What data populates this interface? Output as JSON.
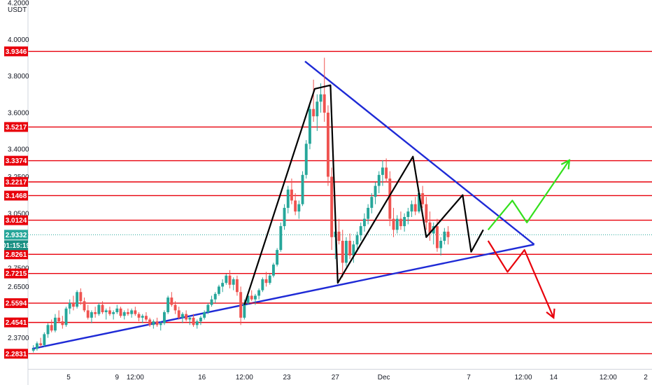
{
  "currency": "USDT",
  "colors": {
    "level": "#e8000b",
    "level_label_bg": "#e8000b",
    "triangle": "#1e2ad6",
    "bull": "#26a69a",
    "bear": "#ef5350",
    "pattern": "#000000",
    "bull_arrow": "#33e01c",
    "bear_arrow": "#e8000b",
    "current_bg": "#26a69a",
    "timer_bg": "#178f82"
  },
  "chart_data": {
    "type": "candlestick",
    "ylim": [
      2.25,
      4.2
    ],
    "y_ticks": [
      "4.2000",
      "4.0000",
      "3.8000",
      "3.6000",
      "3.4000",
      "3.2500",
      "3.0500",
      "2.7500",
      "2.6500",
      "2.3700"
    ],
    "y_tick_values": [
      4.2,
      4.0,
      3.8,
      3.6,
      3.4,
      3.25,
      3.05,
      2.75,
      2.65,
      2.37
    ],
    "x_ticks": [
      "5",
      "9",
      "12:00",
      "16",
      "12:00",
      "23",
      "27",
      "Dec",
      "7",
      "12:00",
      "14",
      "12:00",
      "2"
    ],
    "x_tick_days": [
      5,
      9,
      10.5,
      16,
      19.5,
      23,
      27,
      31,
      38,
      42.5,
      45,
      49.5,
      52.6
    ],
    "xlim": [
      2.0,
      53.0
    ],
    "levels": [
      "3.9346",
      "3.5217",
      "3.3374",
      "3.2217",
      "3.1468",
      "3.0124",
      "2.8261",
      "2.7215",
      "2.5594",
      "2.4541",
      "2.2831"
    ],
    "level_values": [
      3.9346,
      3.5217,
      3.3374,
      3.2217,
      3.1468,
      3.0124,
      2.8261,
      2.7215,
      2.5594,
      2.4541,
      2.2831
    ],
    "current_price": "2.9332",
    "current_value": 2.9332,
    "countdown": "01:15:19",
    "trendlines": [
      {
        "kind": "triangle-lower",
        "points": [
          [
            2.0,
            2.31
          ],
          [
            43.4,
            2.88
          ]
        ]
      },
      {
        "kind": "triangle-upper",
        "points": [
          [
            24.5,
            3.88
          ],
          [
            43.4,
            2.88
          ]
        ]
      },
      {
        "kind": "support",
        "points": [
          [
            19.7,
            2.56
          ],
          [
            53.0,
            2.56
          ]
        ]
      }
    ],
    "pattern_path": [
      [
        19.5,
        2.55
      ],
      [
        25.3,
        3.73
      ],
      [
        26.6,
        3.75
      ],
      [
        27.2,
        2.67
      ],
      [
        33.4,
        3.36
      ],
      [
        34.5,
        2.92
      ],
      [
        37.5,
        3.15
      ],
      [
        38.2,
        2.84
      ],
      [
        39.2,
        2.96
      ]
    ],
    "bull_scenario": [
      [
        39.6,
        2.96
      ],
      [
        41.6,
        3.12
      ],
      [
        42.8,
        3.0
      ],
      [
        46.3,
        3.34
      ]
    ],
    "bear_scenario": [
      [
        39.6,
        2.9
      ],
      [
        41.2,
        2.73
      ],
      [
        42.6,
        2.85
      ],
      [
        45.0,
        2.48
      ]
    ],
    "candles": [
      [
        2.1,
        2.3,
        2.33,
        2.29,
        2.31
      ],
      [
        2.4,
        2.31,
        2.35,
        2.3,
        2.34
      ],
      [
        2.7,
        2.34,
        2.37,
        2.32,
        2.33
      ],
      [
        3.0,
        2.33,
        2.4,
        2.32,
        2.39
      ],
      [
        3.3,
        2.39,
        2.45,
        2.37,
        2.44
      ],
      [
        3.6,
        2.44,
        2.47,
        2.4,
        2.41
      ],
      [
        3.9,
        2.41,
        2.5,
        2.4,
        2.48
      ],
      [
        4.2,
        2.48,
        2.52,
        2.45,
        2.46
      ],
      [
        4.5,
        2.46,
        2.49,
        2.42,
        2.44
      ],
      [
        4.8,
        2.44,
        2.54,
        2.43,
        2.53
      ],
      [
        5.1,
        2.53,
        2.58,
        2.5,
        2.56
      ],
      [
        5.4,
        2.56,
        2.6,
        2.52,
        2.54
      ],
      [
        5.7,
        2.54,
        2.63,
        2.53,
        2.62
      ],
      [
        6.0,
        2.62,
        2.64,
        2.55,
        2.57
      ],
      [
        6.3,
        2.57,
        2.59,
        2.51,
        2.52
      ],
      [
        6.6,
        2.52,
        2.55,
        2.47,
        2.48
      ],
      [
        6.9,
        2.48,
        2.52,
        2.45,
        2.51
      ],
      [
        7.2,
        2.51,
        2.54,
        2.48,
        2.5
      ],
      [
        7.5,
        2.5,
        2.56,
        2.49,
        2.55
      ],
      [
        7.8,
        2.55,
        2.57,
        2.5,
        2.51
      ],
      [
        8.1,
        2.51,
        2.53,
        2.47,
        2.52
      ],
      [
        8.4,
        2.52,
        2.54,
        2.49,
        2.5
      ],
      [
        8.7,
        2.5,
        2.52,
        2.47,
        2.51
      ],
      [
        9.0,
        2.51,
        2.55,
        2.5,
        2.53
      ],
      [
        9.3,
        2.53,
        2.54,
        2.48,
        2.49
      ],
      [
        9.6,
        2.49,
        2.52,
        2.47,
        2.51
      ],
      [
        9.9,
        2.51,
        2.53,
        2.49,
        2.5
      ],
      [
        10.2,
        2.5,
        2.53,
        2.48,
        2.52
      ],
      [
        10.5,
        2.52,
        2.54,
        2.49,
        2.5
      ],
      [
        10.8,
        2.5,
        2.51,
        2.46,
        2.48
      ],
      [
        11.1,
        2.48,
        2.5,
        2.45,
        2.49
      ],
      [
        11.4,
        2.49,
        2.51,
        2.46,
        2.47
      ],
      [
        11.7,
        2.47,
        2.48,
        2.43,
        2.44
      ],
      [
        12.0,
        2.44,
        2.47,
        2.42,
        2.46
      ],
      [
        12.3,
        2.46,
        2.48,
        2.43,
        2.44
      ],
      [
        12.6,
        2.44,
        2.46,
        2.41,
        2.45
      ],
      [
        12.9,
        2.45,
        2.52,
        2.44,
        2.51
      ],
      [
        13.2,
        2.51,
        2.6,
        2.5,
        2.59
      ],
      [
        13.5,
        2.59,
        2.62,
        2.54,
        2.55
      ],
      [
        13.8,
        2.55,
        2.57,
        2.5,
        2.52
      ],
      [
        14.1,
        2.52,
        2.54,
        2.47,
        2.48
      ],
      [
        14.4,
        2.48,
        2.51,
        2.45,
        2.5
      ],
      [
        14.7,
        2.5,
        2.52,
        2.46,
        2.47
      ],
      [
        15.0,
        2.47,
        2.49,
        2.44,
        2.48
      ],
      [
        15.3,
        2.48,
        2.5,
        2.43,
        2.44
      ],
      [
        15.6,
        2.44,
        2.47,
        2.42,
        2.46
      ],
      [
        15.9,
        2.46,
        2.49,
        2.44,
        2.48
      ],
      [
        16.2,
        2.48,
        2.52,
        2.47,
        2.51
      ],
      [
        16.5,
        2.51,
        2.56,
        2.5,
        2.55
      ],
      [
        16.8,
        2.55,
        2.6,
        2.54,
        2.58
      ],
      [
        17.1,
        2.58,
        2.62,
        2.56,
        2.61
      ],
      [
        17.4,
        2.61,
        2.66,
        2.6,
        2.65
      ],
      [
        17.7,
        2.65,
        2.69,
        2.62,
        2.67
      ],
      [
        18.0,
        2.67,
        2.72,
        2.66,
        2.71
      ],
      [
        18.3,
        2.71,
        2.74,
        2.64,
        2.66
      ],
      [
        18.6,
        2.66,
        2.7,
        2.63,
        2.69
      ],
      [
        18.9,
        2.69,
        2.71,
        2.6,
        2.62
      ],
      [
        19.2,
        2.62,
        2.65,
        2.44,
        2.48
      ],
      [
        19.5,
        2.48,
        2.58,
        2.47,
        2.56
      ],
      [
        19.8,
        2.56,
        2.62,
        2.55,
        2.6
      ],
      [
        20.1,
        2.6,
        2.63,
        2.57,
        2.58
      ],
      [
        20.4,
        2.58,
        2.61,
        2.55,
        2.6
      ],
      [
        20.7,
        2.6,
        2.64,
        2.58,
        2.63
      ],
      [
        21.0,
        2.63,
        2.7,
        2.62,
        2.69
      ],
      [
        21.3,
        2.69,
        2.73,
        2.65,
        2.67
      ],
      [
        21.6,
        2.67,
        2.72,
        2.66,
        2.71
      ],
      [
        21.9,
        2.71,
        2.78,
        2.7,
        2.77
      ],
      [
        22.2,
        2.77,
        2.86,
        2.76,
        2.85
      ],
      [
        22.5,
        2.85,
        3.0,
        2.84,
        2.98
      ],
      [
        22.8,
        2.98,
        3.1,
        2.96,
        3.08
      ],
      [
        23.1,
        3.08,
        3.2,
        3.05,
        3.18
      ],
      [
        23.4,
        3.18,
        3.24,
        3.1,
        3.12
      ],
      [
        23.7,
        3.12,
        3.16,
        3.04,
        3.06
      ],
      [
        24.0,
        3.06,
        3.12,
        3.02,
        3.1
      ],
      [
        24.3,
        3.1,
        3.28,
        3.09,
        3.26
      ],
      [
        24.6,
        3.26,
        3.45,
        3.24,
        3.43
      ],
      [
        24.9,
        3.43,
        3.65,
        3.4,
        3.62
      ],
      [
        25.2,
        3.62,
        3.78,
        3.55,
        3.58
      ],
      [
        25.5,
        3.58,
        3.7,
        3.5,
        3.66
      ],
      [
        25.8,
        3.66,
        3.76,
        3.6,
        3.7
      ],
      [
        26.1,
        3.7,
        3.9,
        3.55,
        3.6
      ],
      [
        26.4,
        3.6,
        3.64,
        3.2,
        3.25
      ],
      [
        26.7,
        3.25,
        3.3,
        2.85,
        2.92
      ],
      [
        27.0,
        2.92,
        3.0,
        2.8,
        2.95
      ],
      [
        27.3,
        2.95,
        3.02,
        2.88,
        2.9
      ],
      [
        27.6,
        2.9,
        2.96,
        2.7,
        2.78
      ],
      [
        27.9,
        2.78,
        2.92,
        2.76,
        2.9
      ],
      [
        28.2,
        2.9,
        2.94,
        2.8,
        2.82
      ],
      [
        28.5,
        2.82,
        2.9,
        2.78,
        2.88
      ],
      [
        28.8,
        2.88,
        2.95,
        2.84,
        2.93
      ],
      [
        29.1,
        2.93,
        3.0,
        2.9,
        2.98
      ],
      [
        29.4,
        2.98,
        3.05,
        2.95,
        3.02
      ],
      [
        29.7,
        3.02,
        3.1,
        2.99,
        3.08
      ],
      [
        30.0,
        3.08,
        3.16,
        3.05,
        3.14
      ],
      [
        30.3,
        3.14,
        3.22,
        3.1,
        3.2
      ],
      [
        30.6,
        3.2,
        3.28,
        3.16,
        3.26
      ],
      [
        30.9,
        3.26,
        3.34,
        3.2,
        3.3
      ],
      [
        31.2,
        3.3,
        3.35,
        3.22,
        3.24
      ],
      [
        31.5,
        3.24,
        3.28,
        2.98,
        3.02
      ],
      [
        31.8,
        3.02,
        3.08,
        2.92,
        2.96
      ],
      [
        32.1,
        2.96,
        3.04,
        2.94,
        3.02
      ],
      [
        32.4,
        3.02,
        3.06,
        2.96,
        2.98
      ],
      [
        32.7,
        2.98,
        3.05,
        2.95,
        3.03
      ],
      [
        33.0,
        3.03,
        3.08,
        2.99,
        3.06
      ],
      [
        33.3,
        3.06,
        3.12,
        3.03,
        3.1
      ],
      [
        33.6,
        3.1,
        3.14,
        3.04,
        3.06
      ],
      [
        33.9,
        3.06,
        3.18,
        3.05,
        3.16
      ],
      [
        34.2,
        3.16,
        3.2,
        3.08,
        3.1
      ],
      [
        34.5,
        3.1,
        3.14,
        2.96,
        3.0
      ],
      [
        34.8,
        3.0,
        3.06,
        2.9,
        2.94
      ],
      [
        35.1,
        2.94,
        3.0,
        2.88,
        2.98
      ],
      [
        35.4,
        2.98,
        3.02,
        2.84,
        2.86
      ],
      [
        35.7,
        2.86,
        2.92,
        2.82,
        2.9
      ],
      [
        36.0,
        2.9,
        2.97,
        2.88,
        2.95
      ],
      [
        36.3,
        2.95,
        2.98,
        2.88,
        2.92
      ]
    ]
  }
}
